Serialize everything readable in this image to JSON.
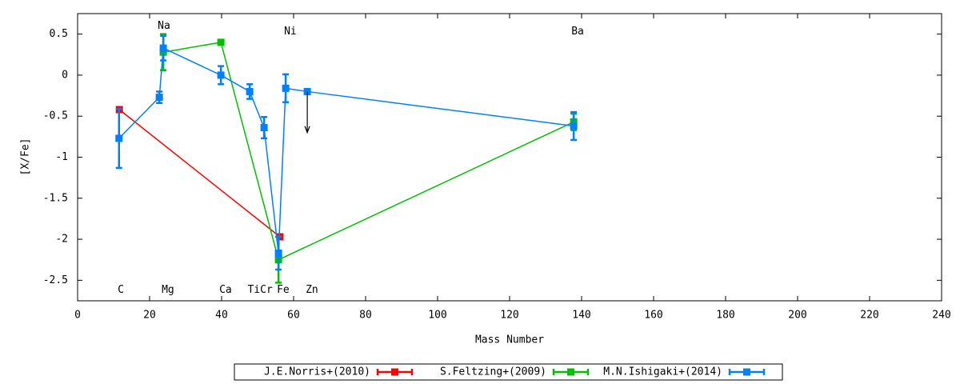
{
  "chart_data": {
    "type": "line",
    "x_label": "Mass Number",
    "y_label": "[X/Fe]",
    "xlim": [
      0,
      240
    ],
    "xticks": [
      0,
      20,
      40,
      60,
      80,
      100,
      120,
      140,
      160,
      180,
      200,
      220,
      240
    ],
    "ylim": [
      -2.75,
      0.75
    ],
    "yticks": [
      0.5,
      0,
      -0.5,
      -1,
      -1.5,
      -2,
      -2.5
    ],
    "legend": "bottom",
    "series": [
      {
        "name": "J.E.Norris+(2010)",
        "color": "#ff0000",
        "x": [
          11.6,
          56.2
        ],
        "values": [
          -0.42,
          -1.97
        ],
        "errors": [
          0.02,
          0.03
        ]
      },
      {
        "name": "S.Feltzing+(2009)",
        "color": "#00c000",
        "x": [
          23.8,
          39.8,
          55.8,
          137.8
        ],
        "values": [
          0.28,
          0.4,
          -2.25,
          -0.57
        ],
        "errors": [
          0.22,
          0.03,
          0.28,
          0.1
        ]
      },
      {
        "name": "M.N.Ishigaki+(2014)",
        "color": "#0080ff",
        "x": [
          11.5,
          22.7,
          23.8,
          39.8,
          47.8,
          51.8,
          55.8,
          57.8,
          63.8,
          137.8
        ],
        "values": [
          -0.77,
          -0.27,
          0.33,
          0,
          -0.2,
          -0.64,
          -2.17,
          -0.16,
          -0.2,
          -0.62
        ],
        "errors": [
          0.36,
          0.07,
          0.15,
          0.11,
          0.09,
          0.13,
          0.2,
          0.17,
          null,
          0.17
        ]
      }
    ],
    "arrows": [
      {
        "x": 63.8,
        "from": -0.2,
        "to": -0.7
      }
    ],
    "annotations": [
      {
        "text": "Na",
        "x": 24,
        "y": 0.6
      },
      {
        "text": "Ni",
        "x": 59.1,
        "y": 0.53
      },
      {
        "text": "Ba",
        "x": 138.9,
        "y": 0.53
      },
      {
        "text": "C",
        "x": 12,
        "y": -2.62
      },
      {
        "text": "Mg",
        "x": 25.1,
        "y": -2.62
      },
      {
        "text": "Ca",
        "x": 41.1,
        "y": -2.62
      },
      {
        "text": "TiCr",
        "x": 50.7,
        "y": -2.62
      },
      {
        "text": "Fe",
        "x": 57.1,
        "y": -2.62
      },
      {
        "text": "Zn",
        "x": 65.1,
        "y": -2.62
      }
    ]
  }
}
